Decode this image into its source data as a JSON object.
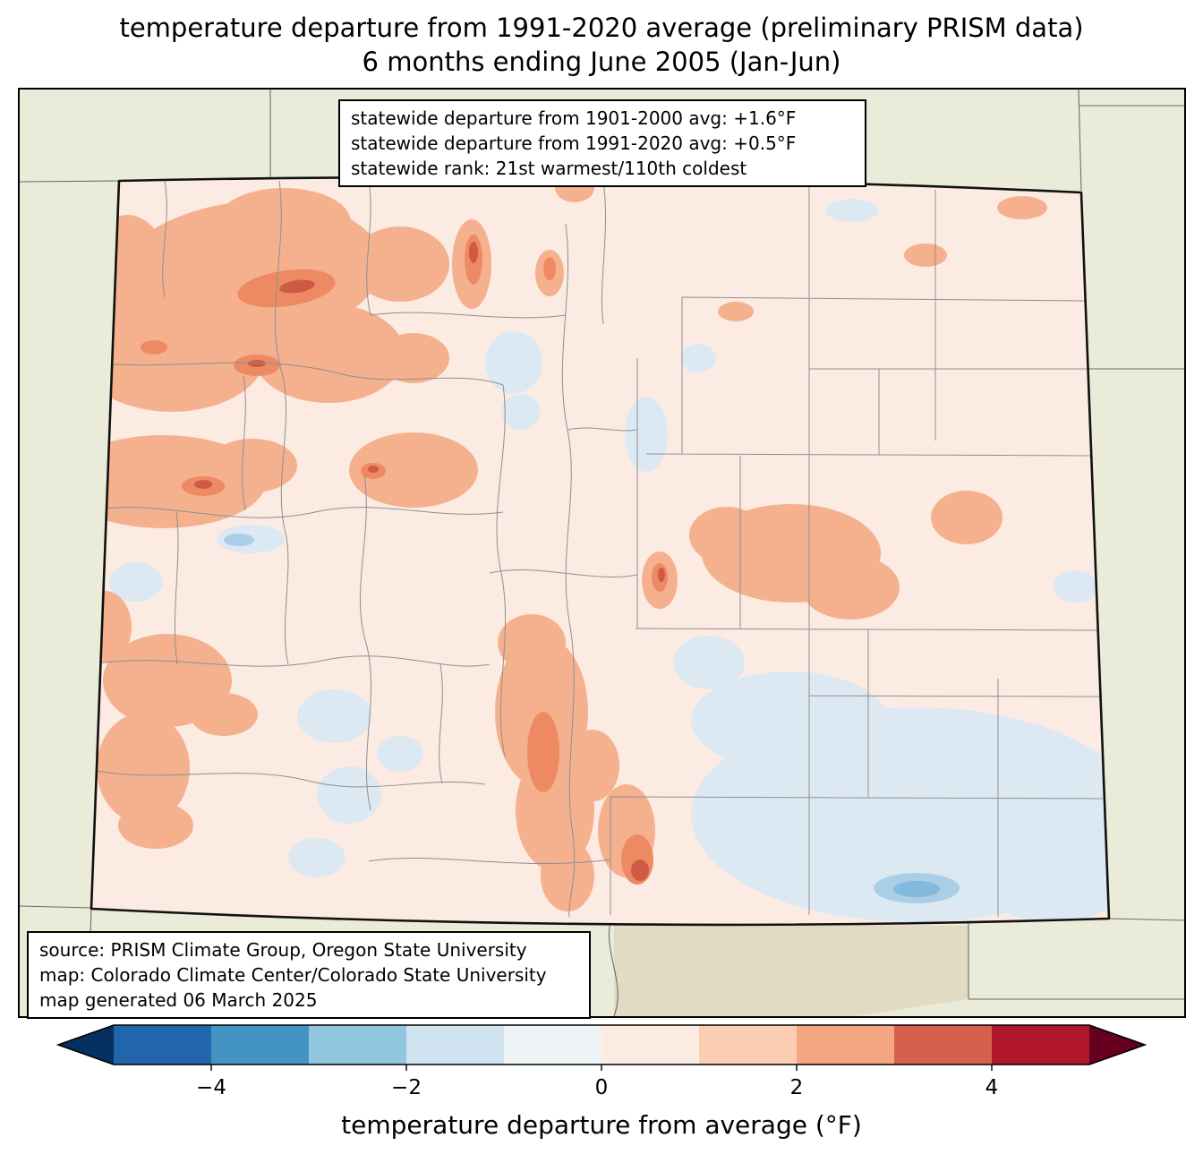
{
  "title": {
    "line1": "temperature departure from 1991-2020 average (preliminary PRISM data)",
    "line2": "6 months ending June 2005 (Jan-Jun)"
  },
  "stats_box": {
    "lines": [
      "statewide departure from 1901-2000 avg: +1.6°F",
      "statewide departure from 1991-2020 avg: +0.5°F",
      "statewide rank: 21st warmest/110th coldest"
    ]
  },
  "source_box": {
    "lines": [
      "source: PRISM Climate Group, Oregon State University",
      "map: Colorado Climate Center/Colorado State University",
      "map generated 06 March 2025"
    ]
  },
  "colorbar": {
    "label": "temperature departure from average (°F)",
    "range": [
      -5,
      5
    ],
    "tick_values": [
      -4,
      -2,
      0,
      2,
      4
    ],
    "tick_labels": [
      "−4",
      "−2",
      "0",
      "2",
      "4"
    ],
    "segment_colors": [
      "#2166ac",
      "#4393c3",
      "#92c5de",
      "#cfe3f0",
      "#eef3f6",
      "#fbece2",
      "#fbcdb3",
      "#f4a582",
      "#d6604d",
      "#b2182b"
    ],
    "left_arrow_color": "#053061",
    "right_arrow_color": "#67001f"
  },
  "map": {
    "region": "Colorado with county boundaries and neighboring states",
    "colors": {
      "outside_land": "#eaecd9",
      "outside_land_south": "#ddd3b8",
      "state_base": "#fcebe3",
      "anom_warm_1": "#f5b18e",
      "anom_warm_2": "#ee8a63",
      "anom_warm_3": "#cf5a44",
      "anom_cool_1": "#dde9f2",
      "anom_cool_2": "#a9cee6",
      "anom_cool_3": "#82b9dd",
      "county_line": "#8f8f8f",
      "state_border": "#111111",
      "neighbor_line": "#6b6b6b"
    }
  }
}
